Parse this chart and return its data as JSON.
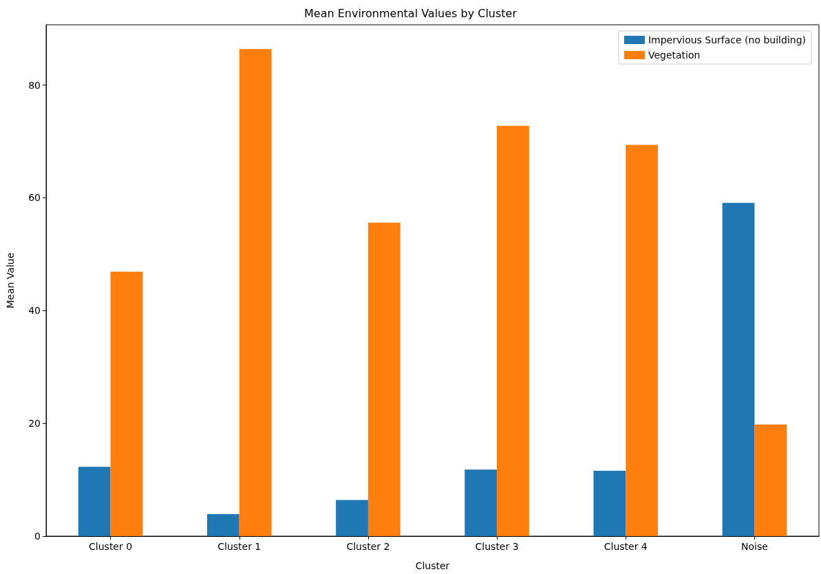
{
  "chart_data": {
    "type": "bar",
    "title": "Mean Environmental Values by Cluster",
    "xlabel": "Cluster",
    "ylabel": "Mean Value",
    "categories": [
      "Cluster 0",
      "Cluster 1",
      "Cluster 2",
      "Cluster 3",
      "Cluster 4",
      "Noise"
    ],
    "series": [
      {
        "name": "Impervious Surface (no building)",
        "color": "#1f77b4",
        "values": [
          12.3,
          3.9,
          6.4,
          11.8,
          11.6,
          59.1
        ]
      },
      {
        "name": "Vegetation",
        "color": "#ff7f0e",
        "values": [
          46.9,
          86.4,
          55.6,
          72.8,
          69.4,
          19.8
        ]
      }
    ],
    "ylim": [
      0,
      90.7
    ],
    "yticks": [
      0,
      20,
      40,
      60,
      80
    ],
    "grid": false,
    "legend": "top right"
  }
}
